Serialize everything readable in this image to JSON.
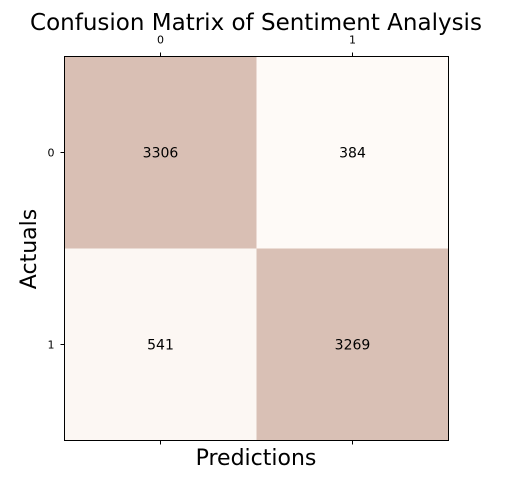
{
  "chart_data": {
    "type": "heatmap",
    "title": "Confusion Matrix of Sentiment Analysis",
    "xlabel": "Predictions",
    "ylabel": "Actuals",
    "x_categories": [
      "0",
      "1"
    ],
    "y_categories": [
      "0",
      "1"
    ],
    "values": [
      [
        3306,
        384
      ],
      [
        541,
        3269
      ]
    ],
    "x_tick_position": "top",
    "grid": false,
    "colors": {
      "high": "#d9bfb4",
      "low": "#fefaf7",
      "text": "#000000"
    }
  }
}
